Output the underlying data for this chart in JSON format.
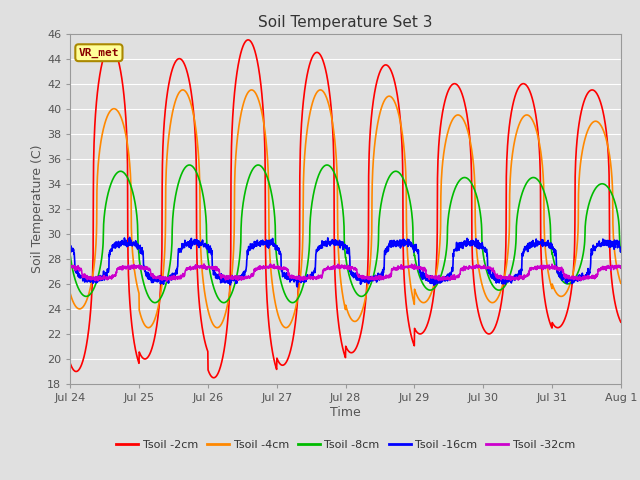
{
  "title": "Soil Temperature Set 3",
  "xlabel": "Time",
  "ylabel": "Soil Temperature (C)",
  "ylim": [
    18,
    46
  ],
  "yticks": [
    18,
    20,
    22,
    24,
    26,
    28,
    30,
    32,
    34,
    36,
    38,
    40,
    42,
    44,
    46
  ],
  "bg_color": "#e0e0e0",
  "grid_color": "#ffffff",
  "fig_bg_color": "#e0e0e0",
  "series": [
    {
      "label": "Tsoil -2cm",
      "color": "#ff0000"
    },
    {
      "label": "Tsoil -4cm",
      "color": "#ff8800"
    },
    {
      "label": "Tsoil -8cm",
      "color": "#00bb00"
    },
    {
      "label": "Tsoil -16cm",
      "color": "#0000ff"
    },
    {
      "label": "Tsoil -32cm",
      "color": "#cc00cc"
    }
  ],
  "annotation_text": "VR_met",
  "annotation_color": "#880000",
  "annotation_bg": "#ffff99",
  "annotation_border": "#aa8800",
  "x_tick_labels": [
    "Jul 24",
    "Jul 25",
    "Jul 26",
    "Jul 27",
    "Jul 28",
    "Jul 29",
    "Jul 30",
    "Jul 31",
    "Aug 1"
  ],
  "hours": 192,
  "period": 24.0,
  "peak_hour": 14.0,
  "mean_2cm": 32.0,
  "mean_4cm": 32.0,
  "mean_8cm": 30.0,
  "mean_16cm": 27.8,
  "mean_32cm": 26.9,
  "amplitude_2cm": 13.0,
  "amplitude_4cm": 9.5,
  "amplitude_8cm": 5.5,
  "amplitude_16cm": 1.5,
  "amplitude_32cm": 0.45,
  "phase_shift_2cm": 0.0,
  "phase_shift_4cm": 1.2,
  "phase_shift_8cm": 3.5,
  "phase_shift_16cm": 5.5,
  "phase_shift_32cm": 8.0,
  "sharpness": 3.5
}
